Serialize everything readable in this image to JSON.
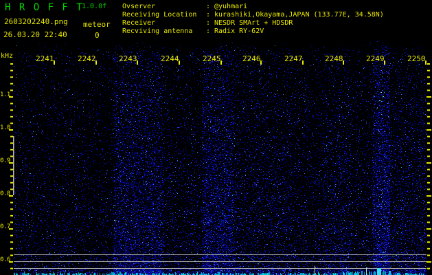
{
  "header": {
    "title": "H R O F F T",
    "version": "1.0.0f",
    "filename": "2603202240.png",
    "datetime": "26.03.20 22:40",
    "counter": {
      "label": "meteor",
      "value": "0"
    }
  },
  "info": {
    "separator": ":",
    "rows": [
      {
        "label": "Ovserver",
        "value": "@yuhmari"
      },
      {
        "label": "Receiving Location",
        "value": "kurashiki,Okayama,JAPAN (133.77E, 34.58N)"
      },
      {
        "label": "Receiver",
        "value": "NESDR SMArt + HDSDR"
      },
      {
        "label": "Recviving antenna",
        "value": "Radix RY-62V"
      }
    ]
  },
  "spectrogram": {
    "freq_unit": "kHz",
    "freq_labels": [
      "1.1",
      "1.0",
      "0.9",
      "0.8",
      "0.7",
      "0.6"
    ],
    "time_labels": [
      "2241",
      "2242",
      "2243",
      "2244",
      "2245",
      "2246",
      "2247",
      "2248",
      "2249",
      "2250"
    ],
    "colors": {
      "background": "#000000",
      "text_yellow": "#e9e900",
      "title_green": "#00d800",
      "grid_gray": "#a8a8a8",
      "noise_blue": "#0000cc",
      "bar_cyan": "#00d8e0"
    }
  }
}
